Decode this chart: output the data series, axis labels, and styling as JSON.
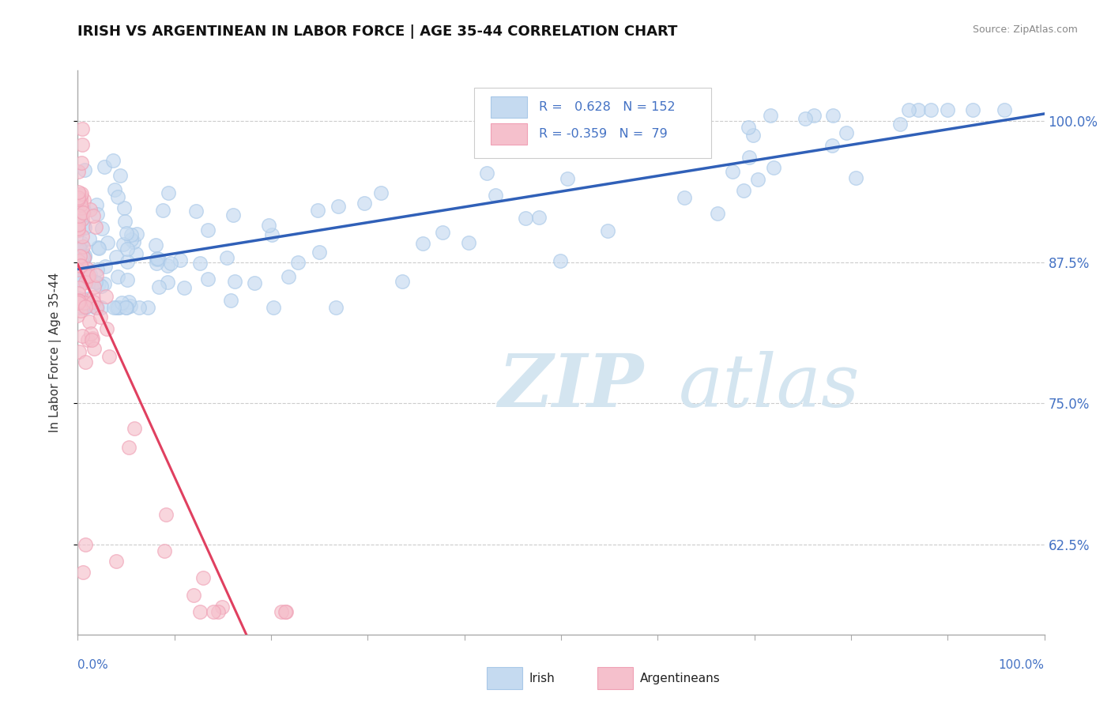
{
  "title": "IRISH VS ARGENTINEAN IN LABOR FORCE | AGE 35-44 CORRELATION CHART",
  "source": "Source: ZipAtlas.com",
  "ylabel": "In Labor Force | Age 35-44",
  "ytick_labels": [
    "62.5%",
    "75.0%",
    "87.5%",
    "100.0%"
  ],
  "ytick_values": [
    0.625,
    0.75,
    0.875,
    1.0
  ],
  "xmin": 0.0,
  "xmax": 1.0,
  "ymin": 0.545,
  "ymax": 1.045,
  "irish_R": 0.628,
  "irish_N": 152,
  "arg_R": -0.359,
  "arg_N": 79,
  "irish_dot_color": "#c5daf0",
  "irish_edge_color": "#a8c8e8",
  "arg_dot_color": "#f5c0cc",
  "arg_edge_color": "#f0a0b5",
  "irish_line_color": "#3060b8",
  "arg_line_solid_color": "#e04060",
  "arg_line_dash_color": "#d8b0bc",
  "watermark_color": "#d4e5f0",
  "legend_R_color": "#4472c4",
  "legend_N_color": "#000000"
}
